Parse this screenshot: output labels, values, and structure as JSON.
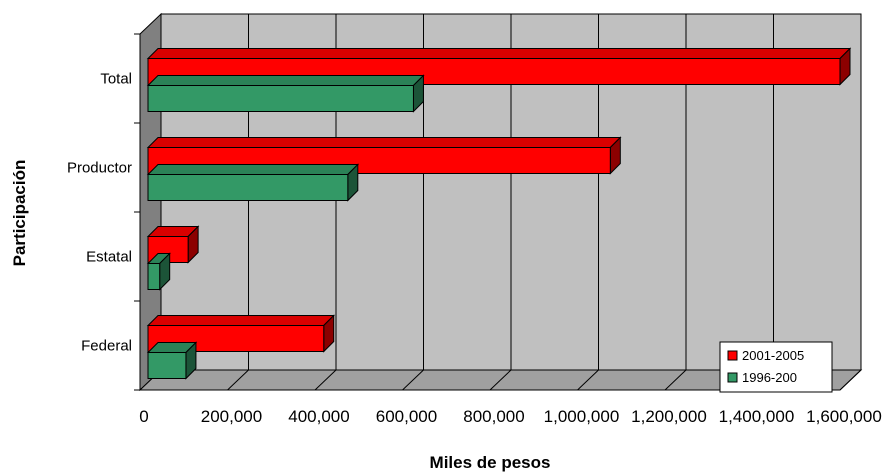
{
  "chart_data": {
    "type": "bar",
    "orientation": "horizontal",
    "three_d": true,
    "categories": [
      "Total",
      "Productor",
      "Estatal",
      "Federal"
    ],
    "series": [
      {
        "name": "2001-2005",
        "color": "#ff0000",
        "values": [
          1600000,
          1075000,
          110000,
          420000
        ]
      },
      {
        "name": "1996-200",
        "color": "#339966",
        "values": [
          625000,
          475000,
          45000,
          105000
        ]
      }
    ],
    "xlabel": "Miles de pesos",
    "ylabel": "Participación",
    "xlim": [
      0,
      1600000
    ],
    "xticks": [
      "0",
      "200,000",
      "400,000",
      "600,000",
      "800,000",
      "1,000,000",
      "1,200,000",
      "1,400,000",
      "1,600,000"
    ],
    "grid": true,
    "legend_position": "bottom-right",
    "wall_color": "#c0c0c0"
  }
}
